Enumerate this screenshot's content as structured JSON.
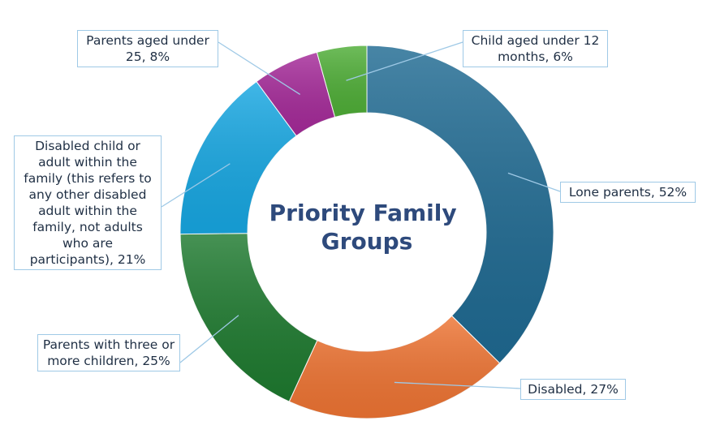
{
  "chart_data": {
    "type": "pie",
    "donut": true,
    "title": "Priority Family Groups",
    "unit": "%",
    "slices": [
      {
        "label": "Lone parents, 52%",
        "value": 52,
        "color": "#1f6a92"
      },
      {
        "label": "Disabled, 27%",
        "value": 27,
        "color": "#ee7433"
      },
      {
        "label": "Parents with three or more children, 25%",
        "value": 25,
        "color": "#1e7a2f"
      },
      {
        "label": "Disabled child or adult within the family (this refers to any other disabled adult within the family, not adults who are participants), 21%",
        "value": 21,
        "color": "#17a7e2"
      },
      {
        "label": "Parents aged under 25, 8%",
        "value": 8,
        "color": "#a52a99"
      },
      {
        "label": "Child aged under 12 months, 6%",
        "value": 6,
        "color": "#4fae37"
      }
    ]
  }
}
